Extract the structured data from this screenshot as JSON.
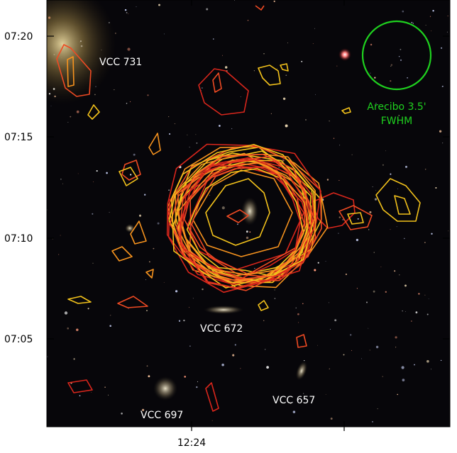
{
  "axes": {
    "y_ticks": [
      "07:20",
      "07:15",
      "07:10",
      "07:05"
    ],
    "x_ticks": [
      "12:24"
    ]
  },
  "labels": {
    "vcc731": "VCC 731",
    "vcc672": "VCC 672",
    "vcc697": "VCC 697",
    "vcc657": "VCC 657"
  },
  "beam": {
    "line1": "Arecibo 3.5'",
    "line2": "FWHM",
    "color": "#1fd11f"
  },
  "colors": {
    "background": "#07060a",
    "contour_yellow": "#f3c21b",
    "contour_orange": "#f7931e",
    "contour_red": "#ef4a23",
    "contour_darkred": "#d8261c"
  }
}
